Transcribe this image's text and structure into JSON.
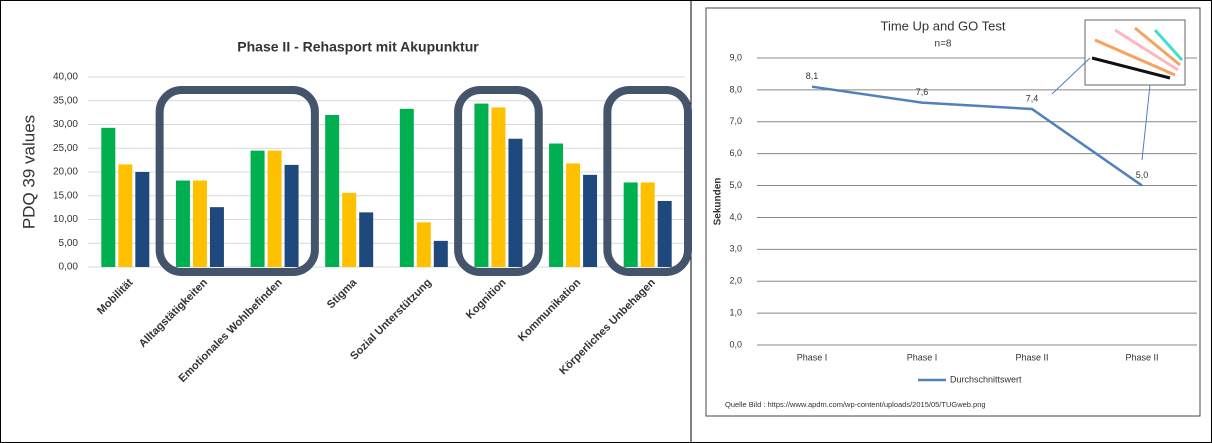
{
  "chart_data": [
    {
      "type": "bar",
      "title": "Phase II - Rehasport mit Akupunktur",
      "ylabel": "PDQ 39 values",
      "categories": [
        "Mobilität",
        "Alltagstätigkeiten",
        "Emotionales Wohlbefinden",
        "Stigma",
        "Sozial Unterstützung",
        "Kognition",
        "Kommunikation",
        "Körperliches Unbehagen"
      ],
      "series": [
        {
          "color": "#00b050",
          "values": [
            29.3,
            18.2,
            24.5,
            32.0,
            33.3,
            34.4,
            26.0,
            17.8
          ]
        },
        {
          "color": "#ffc000",
          "values": [
            21.6,
            18.2,
            24.5,
            15.6,
            9.4,
            33.6,
            21.8,
            17.8
          ]
        },
        {
          "color": "#1f497d",
          "values": [
            20.0,
            12.6,
            21.5,
            11.5,
            5.5,
            27.0,
            19.4,
            13.9
          ]
        }
      ],
      "ylim": [
        0,
        40
      ],
      "yticks": [
        {
          "value": 0,
          "label": "0,00"
        },
        {
          "value": 5,
          "label": "5,00"
        },
        {
          "value": 10,
          "label": "10,00"
        },
        {
          "value": 15,
          "label": "15,00"
        },
        {
          "value": 20,
          "label": "20,00"
        },
        {
          "value": 25,
          "label": "25,00"
        },
        {
          "value": 30,
          "label": "30,00"
        },
        {
          "value": 35,
          "label": "35,00"
        },
        {
          "value": 40,
          "label": "40,00"
        }
      ],
      "grid": true
    },
    {
      "type": "line",
      "title": "Time Up and GO Test",
      "subtitle": "n=8",
      "ylabel": "Sekunden",
      "categories": [
        "Phase I",
        "Phase I",
        "Phase II",
        "Phase II"
      ],
      "series": [
        {
          "name": "Durchschnittswert",
          "color": "#4f81bd",
          "values": [
            8.1,
            7.6,
            7.4,
            5.0
          ],
          "value_labels": [
            "8,1",
            "7,6",
            "7,4",
            "5,0"
          ]
        }
      ],
      "ylim": [
        0,
        9
      ],
      "yticks": [
        {
          "value": 0,
          "label": "0,0"
        },
        {
          "value": 1,
          "label": "1,0"
        },
        {
          "value": 2,
          "label": "2,0"
        },
        {
          "value": 3,
          "label": "3,0"
        },
        {
          "value": 4,
          "label": "4,0"
        },
        {
          "value": 5,
          "label": "5,0"
        },
        {
          "value": 6,
          "label": "6,0"
        },
        {
          "value": 7,
          "label": "7,0"
        },
        {
          "value": 8,
          "label": "8,0"
        },
        {
          "value": 9,
          "label": "9,0"
        }
      ],
      "grid": true,
      "legend": "bottom",
      "source": "Quelle Bild : https://www.apdm.com/wp-content/uploads/2015/05/TUGweb.png"
    }
  ]
}
